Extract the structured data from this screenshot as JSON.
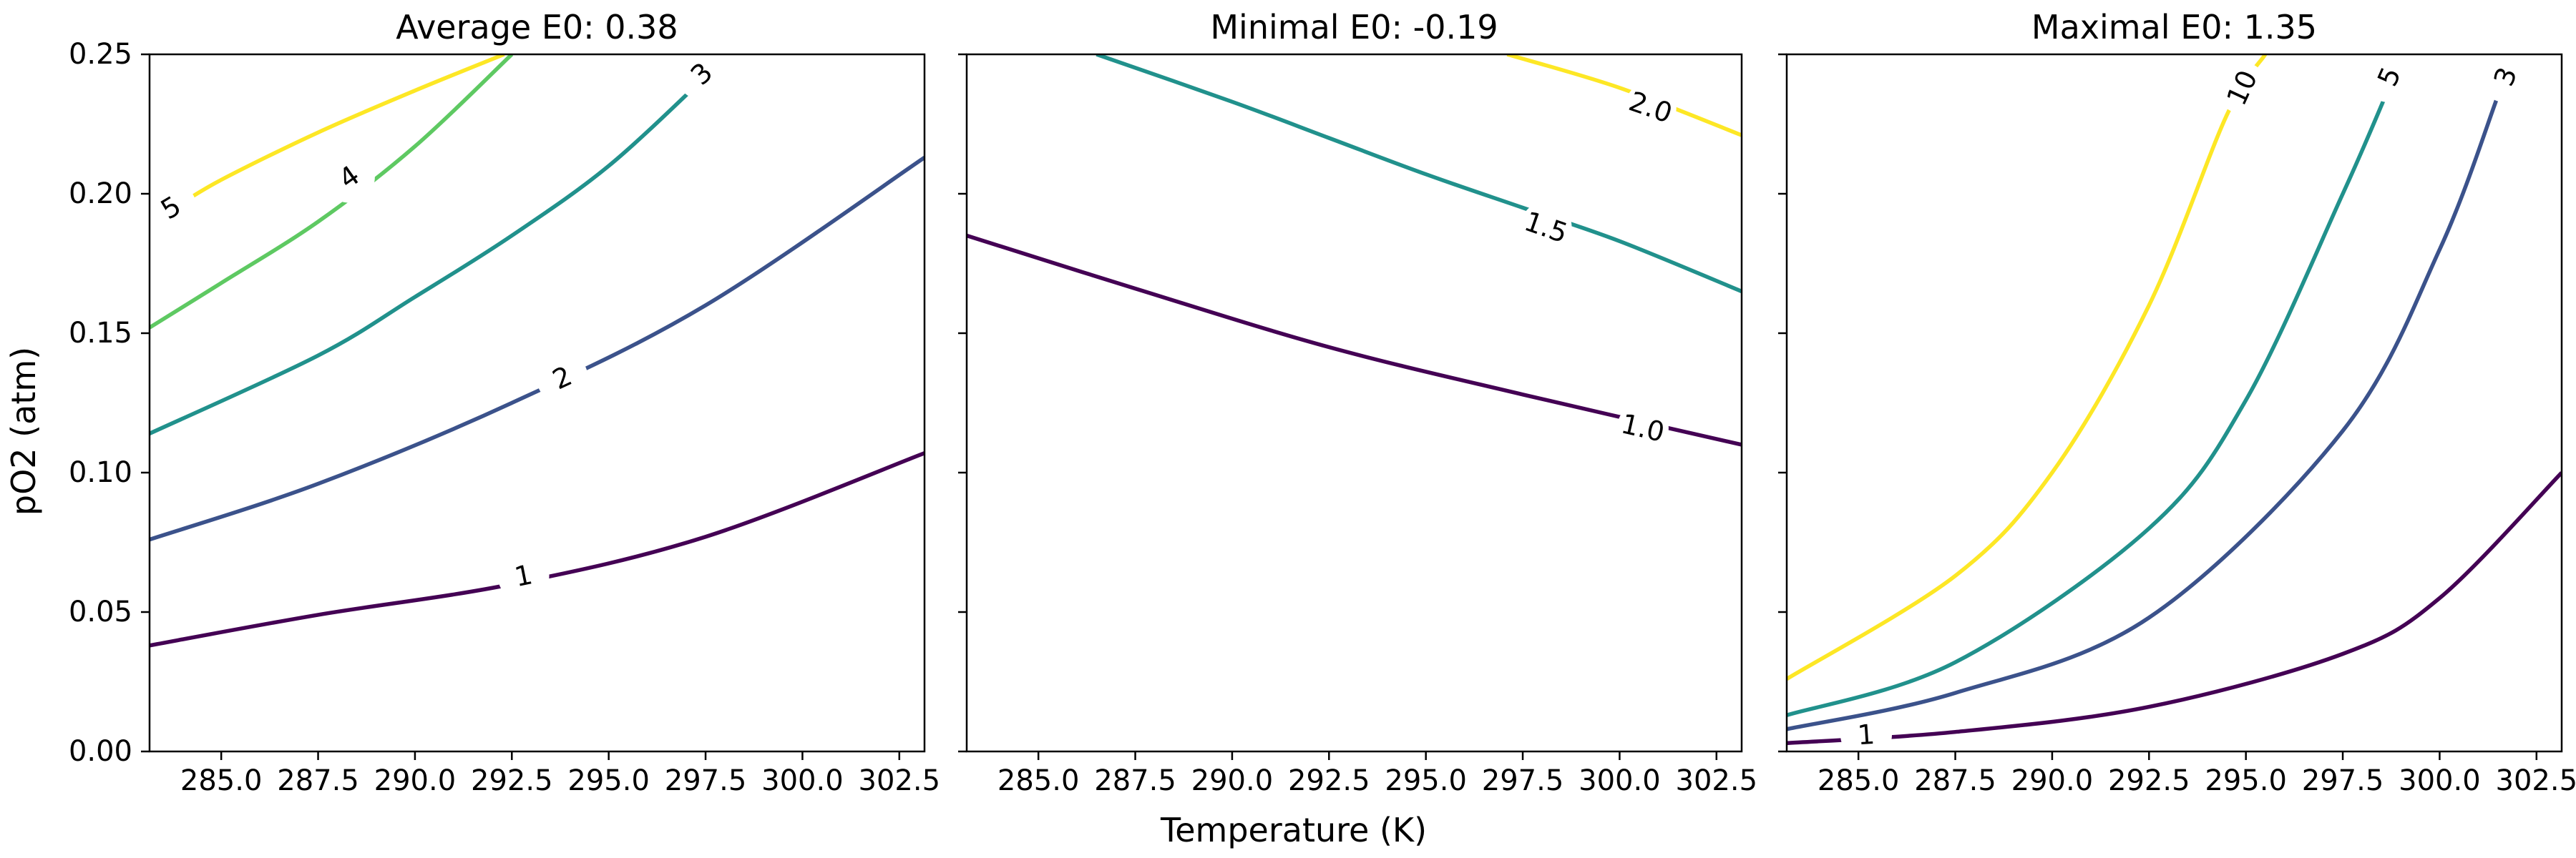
{
  "figure": {
    "shared_ylabel": "pO2 (atm)",
    "shared_xlabel": "Temperature (K)"
  },
  "chart_data": [
    {
      "type": "line",
      "subtype": "contour",
      "title": "Average E0: 0.38",
      "xlabel": "Temperature (K)",
      "ylabel": "pO2 (atm)",
      "xlim": [
        283.15,
        303.15
      ],
      "ylim": [
        0,
        0.25
      ],
      "xticks": [
        "285.0",
        "287.5",
        "290.0",
        "292.5",
        "295.0",
        "297.5",
        "300.0",
        "302.5"
      ],
      "yticks": [
        "0.00",
        "0.05",
        "0.10",
        "0.15",
        "0.20",
        "0.25"
      ],
      "grid": false,
      "series": [
        {
          "name": "1",
          "color": "#440154",
          "x": [
            283.15,
            287.5,
            292.5,
            297.5,
            303.15
          ],
          "y": [
            0.038,
            0.049,
            0.06,
            0.077,
            0.107
          ],
          "label_pos": [
            292.8,
            0.063
          ]
        },
        {
          "name": "2",
          "color": "#3b528b",
          "x": [
            283.15,
            287.5,
            292.5,
            297.5,
            303.15
          ],
          "y": [
            0.076,
            0.096,
            0.125,
            0.16,
            0.213
          ],
          "label_pos": [
            293.8,
            0.134
          ]
        },
        {
          "name": "3",
          "color": "#21918c",
          "x": [
            283.15,
            287.5,
            290.0,
            292.5,
            295.0,
            297.5
          ],
          "y": [
            0.114,
            0.142,
            0.163,
            0.185,
            0.21,
            0.242
          ],
          "label_pos": [
            297.4,
            0.243
          ]
        },
        {
          "name": "4",
          "color": "#5ec962",
          "x": [
            283.15,
            285.0,
            287.5,
            290.0,
            292.5
          ],
          "y": [
            0.152,
            0.168,
            0.19,
            0.217,
            0.25
          ],
          "label_pos": [
            288.3,
            0.206
          ]
        },
        {
          "name": "5",
          "color": "#fde725",
          "x": [
            283.8,
            285.0,
            287.5,
            290.0,
            292.3
          ],
          "y": [
            0.195,
            0.205,
            0.222,
            0.237,
            0.25
          ],
          "label_pos": [
            283.7,
            0.195
          ]
        }
      ]
    },
    {
      "type": "line",
      "subtype": "contour",
      "title": "Minimal E0: -0.19",
      "xlabel": "Temperature (K)",
      "ylabel": "pO2 (atm)",
      "xlim": [
        283.15,
        303.15
      ],
      "ylim": [
        0,
        0.25
      ],
      "xticks": [
        "285.0",
        "287.5",
        "290.0",
        "292.5",
        "295.0",
        "297.5",
        "300.0",
        "302.5"
      ],
      "yticks": [
        "0.00",
        "0.05",
        "0.10",
        "0.15",
        "0.20",
        "0.25"
      ],
      "grid": false,
      "series": [
        {
          "name": "1.0",
          "color": "#440154",
          "x": [
            283.15,
            287.5,
            292.5,
            297.5,
            303.15
          ],
          "y": [
            0.185,
            0.166,
            0.145,
            0.128,
            0.11
          ],
          "label_pos": [
            300.6,
            0.116
          ]
        },
        {
          "name": "1.5",
          "color": "#21918c",
          "x": [
            286.5,
            290.0,
            292.5,
            295.0,
            297.5,
            300.0,
            303.15
          ],
          "y": [
            0.25,
            0.233,
            0.22,
            0.207,
            0.195,
            0.183,
            0.165
          ],
          "label_pos": [
            298.1,
            0.188
          ]
        },
        {
          "name": "2.0",
          "color": "#fde725",
          "x": [
            297.1,
            300.0,
            303.15
          ],
          "y": [
            0.25,
            0.238,
            0.221
          ],
          "label_pos": [
            300.8,
            0.231
          ]
        }
      ]
    },
    {
      "type": "line",
      "subtype": "contour",
      "title": "Maximal E0: 1.35",
      "xlabel": "Temperature (K)",
      "ylabel": "pO2 (atm)",
      "xlim": [
        283.15,
        303.15
      ],
      "ylim": [
        0,
        0.25
      ],
      "xticks": [
        "285.0",
        "287.5",
        "290.0",
        "292.5",
        "295.0",
        "297.5",
        "300.0",
        "302.5"
      ],
      "yticks": [
        "0.00",
        "0.05",
        "0.10",
        "0.15",
        "0.20",
        "0.25"
      ],
      "grid": false,
      "series": [
        {
          "name": "1",
          "color": "#440154",
          "x": [
            283.15,
            287.5,
            292.5,
            297.5,
            300.0,
            303.15
          ],
          "y": [
            0.003,
            0.007,
            0.016,
            0.035,
            0.055,
            0.1
          ],
          "label_pos": [
            285.2,
            0.006
          ]
        },
        {
          "name": "3",
          "color": "#3b528b",
          "x": [
            283.15,
            287.5,
            292.5,
            297.5,
            300.0,
            301.5
          ],
          "y": [
            0.008,
            0.021,
            0.048,
            0.115,
            0.18,
            0.235
          ],
          "label_pos": [
            301.7,
            0.242
          ]
        },
        {
          "name": "5",
          "color": "#21918c",
          "x": [
            283.15,
            287.5,
            292.5,
            295.0,
            297.5,
            298.6
          ],
          "y": [
            0.013,
            0.032,
            0.08,
            0.126,
            0.2,
            0.235
          ],
          "label_pos": [
            298.7,
            0.242
          ]
        },
        {
          "name": "10",
          "color": "#fde725",
          "x": [
            283.15,
            287.5,
            290.0,
            292.5,
            294.5,
            295.5
          ],
          "y": [
            0.026,
            0.063,
            0.1,
            0.16,
            0.228,
            0.25
          ],
          "label_pos": [
            294.9,
            0.238
          ]
        }
      ]
    }
  ]
}
